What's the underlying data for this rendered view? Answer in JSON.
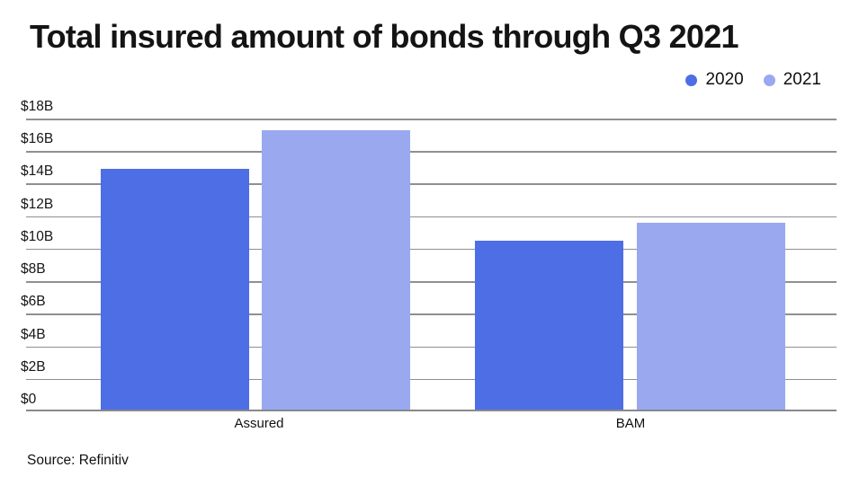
{
  "chart_data": {
    "type": "bar",
    "title": "Total insured amount of bonds through Q3 2021",
    "categories": [
      "Assured",
      "BAM"
    ],
    "series": [
      {
        "name": "2020",
        "color": "#4d6ee5",
        "values": [
          14.9,
          10.5
        ]
      },
      {
        "name": "2021",
        "color": "#9aa8f0",
        "values": [
          17.3,
          11.6
        ]
      }
    ],
    "xlabel": "",
    "ylabel": "",
    "ylim": [
      0,
      18
    ],
    "y_tick_step": 2,
    "y_ticks": [
      "$18B",
      "$16B",
      "$14B",
      "$12B",
      "$10B",
      "$8B",
      "$6B",
      "$4B",
      "$2B",
      "$0"
    ],
    "grid": true,
    "legend_position": "top-right",
    "value_unit": "billions of dollars (B)"
  },
  "source_note": "Source: Refinitiv",
  "colors": {
    "series_2020": "#4d6ee5",
    "series_2021": "#9aa8f0",
    "grid_line": "#8f8f94",
    "title_text": "#141414",
    "axis_text": "#16161a"
  }
}
